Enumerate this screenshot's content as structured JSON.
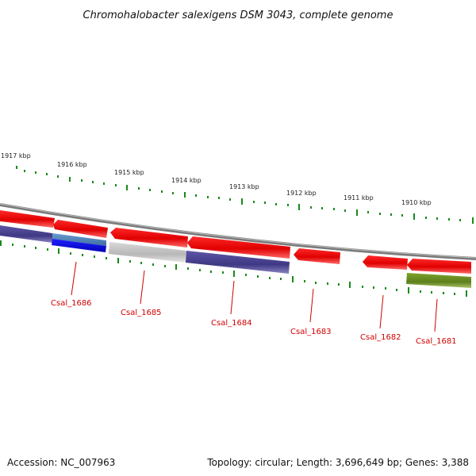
{
  "title": "Chromohalobacter salexigens DSM 3043, complete genome",
  "footer": {
    "accession": "Accession: NC_007963",
    "summary": "Topology: circular; Length: 3,696,649 bp; Genes: 3,388"
  },
  "scale_labels": [
    "1917 kbp",
    "1916 kbp",
    "1915 kbp",
    "1914 kbp",
    "1913 kbp",
    "1912 kbp",
    "1911 kbp",
    "1910 kbp"
  ],
  "gene_labels": [
    "Csal_1686",
    "Csal_1685",
    "Csal_1684",
    "Csal_1683",
    "Csal_1682",
    "Csal_1681"
  ],
  "colors": {
    "backbone": "#808080",
    "forward_feature": "#ff0000",
    "reverse_dark": "#4b4490",
    "reverse_blue": "#0000ee",
    "reverse_steel": "#4f7fb0",
    "reverse_gray": "#bdbdbd",
    "reverse_olive": "#6b8e23",
    "tick": "#1a8a1a",
    "label": "#d00000"
  }
}
